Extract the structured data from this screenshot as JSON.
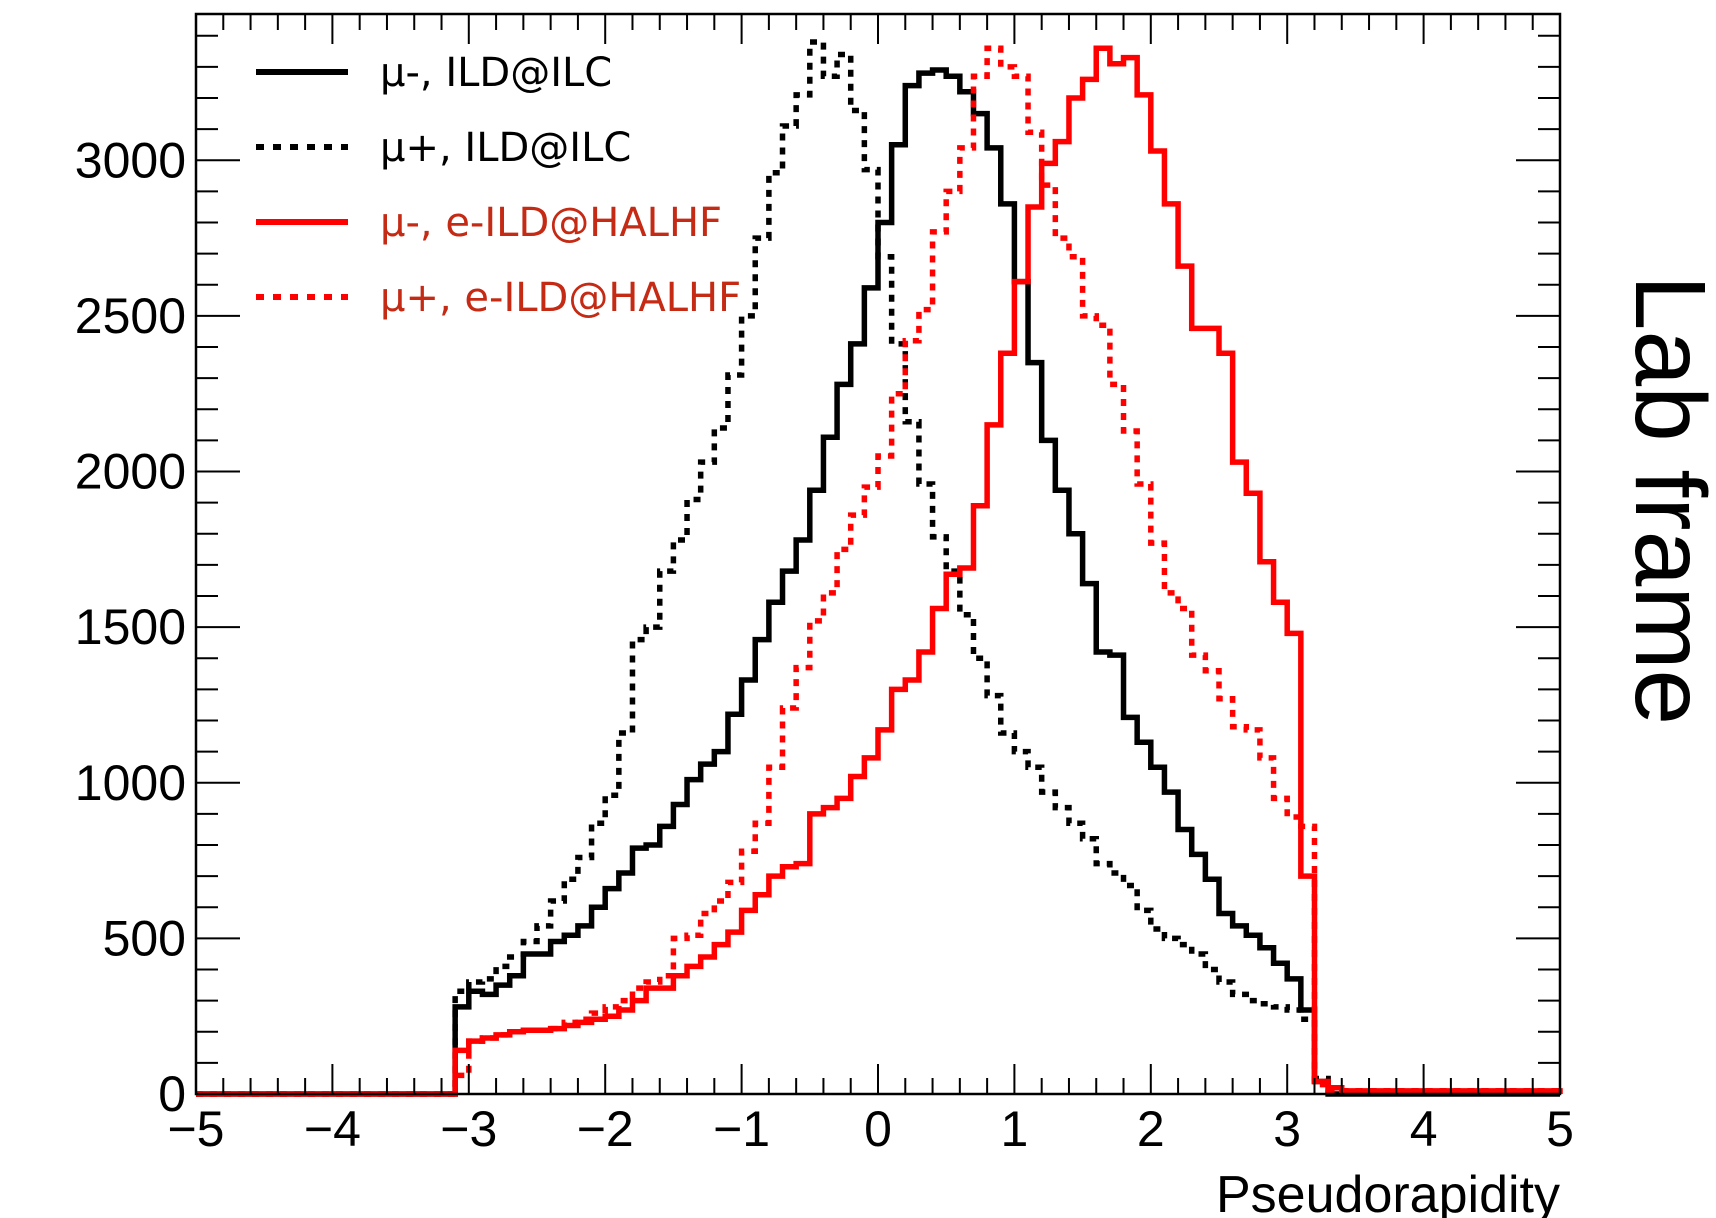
{
  "chart_data": {
    "type": "line",
    "histogram_style": "step",
    "xlabel": "Pseudorapidity",
    "ylabel": "",
    "side_title": "Lab frame",
    "xlim": [
      -5,
      5
    ],
    "ylim": [
      0,
      3470
    ],
    "bin_width": 0.1,
    "x_ticks": [
      "−5",
      "−4",
      "−3",
      "−2",
      "−1",
      "0",
      "1",
      "2",
      "3",
      "4",
      "5"
    ],
    "y_ticks": [
      "0",
      "500",
      "1000",
      "1500",
      "2000",
      "2500",
      "3000"
    ],
    "grid": false,
    "legend_position": "top-left",
    "series": [
      {
        "name": "μ-, ILD@ILC",
        "color": "#000000",
        "dash": "solid",
        "text_color": "#000000",
        "points": [
          [
            -5.0,
            0
          ],
          [
            -3.2,
            0
          ],
          [
            -3.1,
            280
          ],
          [
            -3.0,
            330
          ],
          [
            -2.9,
            320
          ],
          [
            -2.8,
            350
          ],
          [
            -2.7,
            380
          ],
          [
            -2.6,
            450
          ],
          [
            -2.5,
            450
          ],
          [
            -2.4,
            490
          ],
          [
            -2.3,
            510
          ],
          [
            -2.2,
            540
          ],
          [
            -2.1,
            600
          ],
          [
            -2.0,
            660
          ],
          [
            -1.9,
            710
          ],
          [
            -1.8,
            790
          ],
          [
            -1.7,
            800
          ],
          [
            -1.6,
            860
          ],
          [
            -1.5,
            930
          ],
          [
            -1.4,
            1010
          ],
          [
            -1.3,
            1060
          ],
          [
            -1.2,
            1100
          ],
          [
            -1.1,
            1220
          ],
          [
            -1.0,
            1330
          ],
          [
            -0.9,
            1460
          ],
          [
            -0.8,
            1580
          ],
          [
            -0.7,
            1680
          ],
          [
            -0.6,
            1780
          ],
          [
            -0.5,
            1940
          ],
          [
            -0.4,
            2110
          ],
          [
            -0.3,
            2280
          ],
          [
            -0.2,
            2410
          ],
          [
            -0.1,
            2590
          ],
          [
            0.0,
            2800
          ],
          [
            0.1,
            3050
          ],
          [
            0.2,
            3240
          ],
          [
            0.3,
            3280
          ],
          [
            0.4,
            3290
          ],
          [
            0.5,
            3270
          ],
          [
            0.6,
            3220
          ],
          [
            0.7,
            3150
          ],
          [
            0.8,
            3040
          ],
          [
            0.9,
            2860
          ],
          [
            1.0,
            2610
          ],
          [
            1.1,
            2350
          ],
          [
            1.2,
            2100
          ],
          [
            1.3,
            1940
          ],
          [
            1.4,
            1800
          ],
          [
            1.5,
            1640
          ],
          [
            1.6,
            1420
          ],
          [
            1.7,
            1410
          ],
          [
            1.8,
            1210
          ],
          [
            1.9,
            1130
          ],
          [
            2.0,
            1050
          ],
          [
            2.1,
            970
          ],
          [
            2.2,
            850
          ],
          [
            2.3,
            770
          ],
          [
            2.4,
            690
          ],
          [
            2.5,
            580
          ],
          [
            2.6,
            540
          ],
          [
            2.7,
            510
          ],
          [
            2.8,
            470
          ],
          [
            2.9,
            420
          ],
          [
            3.0,
            370
          ],
          [
            3.1,
            270
          ],
          [
            3.2,
            40
          ],
          [
            3.3,
            0
          ],
          [
            5.0,
            0
          ]
        ]
      },
      {
        "name": "μ+, ILD@ILC",
        "color": "#000000",
        "dash": "dotted",
        "text_color": "#000000",
        "points": [
          [
            -5.0,
            0
          ],
          [
            -3.2,
            0
          ],
          [
            -3.1,
            330
          ],
          [
            -3.0,
            360
          ],
          [
            -2.9,
            370
          ],
          [
            -2.8,
            410
          ],
          [
            -2.7,
            440
          ],
          [
            -2.6,
            490
          ],
          [
            -2.5,
            540
          ],
          [
            -2.4,
            620
          ],
          [
            -2.3,
            690
          ],
          [
            -2.2,
            760
          ],
          [
            -2.1,
            870
          ],
          [
            -2.0,
            960
          ],
          [
            -1.9,
            1160
          ],
          [
            -1.8,
            1460
          ],
          [
            -1.7,
            1500
          ],
          [
            -1.6,
            1680
          ],
          [
            -1.5,
            1780
          ],
          [
            -1.4,
            1910
          ],
          [
            -1.3,
            2030
          ],
          [
            -1.2,
            2140
          ],
          [
            -1.1,
            2310
          ],
          [
            -1.0,
            2500
          ],
          [
            -0.9,
            2750
          ],
          [
            -0.8,
            2960
          ],
          [
            -0.7,
            3110
          ],
          [
            -0.6,
            3210
          ],
          [
            -0.5,
            3380
          ],
          [
            -0.4,
            3270
          ],
          [
            -0.3,
            3340
          ],
          [
            -0.2,
            3160
          ],
          [
            -0.1,
            2970
          ],
          [
            0.0,
            2690
          ],
          [
            0.1,
            2410
          ],
          [
            0.2,
            2160
          ],
          [
            0.3,
            1960
          ],
          [
            0.4,
            1790
          ],
          [
            0.5,
            1680
          ],
          [
            0.6,
            1540
          ],
          [
            0.7,
            1400
          ],
          [
            0.8,
            1280
          ],
          [
            0.9,
            1160
          ],
          [
            1.0,
            1100
          ],
          [
            1.1,
            1050
          ],
          [
            1.2,
            970
          ],
          [
            1.3,
            920
          ],
          [
            1.4,
            870
          ],
          [
            1.5,
            820
          ],
          [
            1.6,
            740
          ],
          [
            1.7,
            710
          ],
          [
            1.8,
            670
          ],
          [
            1.9,
            590
          ],
          [
            2.0,
            530
          ],
          [
            2.1,
            500
          ],
          [
            2.2,
            480
          ],
          [
            2.3,
            450
          ],
          [
            2.4,
            400
          ],
          [
            2.5,
            360
          ],
          [
            2.6,
            320
          ],
          [
            2.7,
            300
          ],
          [
            2.8,
            290
          ],
          [
            2.9,
            280
          ],
          [
            3.0,
            270
          ],
          [
            3.1,
            240
          ],
          [
            3.2,
            50
          ],
          [
            3.3,
            10
          ],
          [
            5.0,
            0
          ]
        ]
      },
      {
        "name": "μ-, e-ILD@HALHF",
        "color": "#ff0000",
        "dash": "solid",
        "text_color": "#c42a14",
        "points": [
          [
            -5.0,
            0
          ],
          [
            -3.2,
            0
          ],
          [
            -3.1,
            140
          ],
          [
            -3.0,
            170
          ],
          [
            -2.9,
            180
          ],
          [
            -2.8,
            190
          ],
          [
            -2.7,
            200
          ],
          [
            -2.6,
            205
          ],
          [
            -2.5,
            205
          ],
          [
            -2.4,
            210
          ],
          [
            -2.3,
            220
          ],
          [
            -2.2,
            230
          ],
          [
            -2.1,
            240
          ],
          [
            -2.0,
            250
          ],
          [
            -1.9,
            270
          ],
          [
            -1.8,
            300
          ],
          [
            -1.7,
            340
          ],
          [
            -1.6,
            340
          ],
          [
            -1.5,
            380
          ],
          [
            -1.4,
            410
          ],
          [
            -1.3,
            440
          ],
          [
            -1.2,
            480
          ],
          [
            -1.1,
            520
          ],
          [
            -1.0,
            590
          ],
          [
            -0.9,
            640
          ],
          [
            -0.8,
            700
          ],
          [
            -0.7,
            730
          ],
          [
            -0.6,
            740
          ],
          [
            -0.5,
            900
          ],
          [
            -0.4,
            920
          ],
          [
            -0.3,
            950
          ],
          [
            -0.2,
            1020
          ],
          [
            -0.1,
            1080
          ],
          [
            0.0,
            1170
          ],
          [
            0.1,
            1300
          ],
          [
            0.2,
            1330
          ],
          [
            0.3,
            1420
          ],
          [
            0.4,
            1560
          ],
          [
            0.5,
            1670
          ],
          [
            0.6,
            1690
          ],
          [
            0.7,
            1890
          ],
          [
            0.8,
            2150
          ],
          [
            0.9,
            2380
          ],
          [
            1.0,
            2610
          ],
          [
            1.1,
            2850
          ],
          [
            1.2,
            2990
          ],
          [
            1.3,
            3060
          ],
          [
            1.4,
            3200
          ],
          [
            1.5,
            3260
          ],
          [
            1.6,
            3360
          ],
          [
            1.7,
            3310
          ],
          [
            1.8,
            3330
          ],
          [
            1.9,
            3210
          ],
          [
            2.0,
            3030
          ],
          [
            2.1,
            2860
          ],
          [
            2.2,
            2660
          ],
          [
            2.3,
            2460
          ],
          [
            2.4,
            2460
          ],
          [
            2.5,
            2380
          ],
          [
            2.6,
            2030
          ],
          [
            2.7,
            1930
          ],
          [
            2.8,
            1710
          ],
          [
            2.9,
            1580
          ],
          [
            3.0,
            1480
          ],
          [
            3.1,
            700
          ],
          [
            3.2,
            40
          ],
          [
            3.3,
            20
          ],
          [
            3.4,
            10
          ],
          [
            5.0,
            0
          ]
        ]
      },
      {
        "name": "μ+, e-ILD@HALHF",
        "color": "#ff0000",
        "dash": "dotted",
        "text_color": "#c42a14",
        "points": [
          [
            -5.0,
            0
          ],
          [
            -3.2,
            0
          ],
          [
            -3.1,
            60
          ],
          [
            -3.0,
            170
          ],
          [
            -2.9,
            180
          ],
          [
            -2.8,
            190
          ],
          [
            -2.7,
            200
          ],
          [
            -2.6,
            205
          ],
          [
            -2.5,
            205
          ],
          [
            -2.4,
            210
          ],
          [
            -2.3,
            230
          ],
          [
            -2.2,
            240
          ],
          [
            -2.1,
            260
          ],
          [
            -2.0,
            280
          ],
          [
            -1.9,
            300
          ],
          [
            -1.8,
            340
          ],
          [
            -1.7,
            360
          ],
          [
            -1.6,
            380
          ],
          [
            -1.5,
            500
          ],
          [
            -1.4,
            510
          ],
          [
            -1.3,
            580
          ],
          [
            -1.2,
            620
          ],
          [
            -1.1,
            680
          ],
          [
            -1.0,
            780
          ],
          [
            -0.9,
            870
          ],
          [
            -0.8,
            1050
          ],
          [
            -0.7,
            1240
          ],
          [
            -0.6,
            1370
          ],
          [
            -0.5,
            1520
          ],
          [
            -0.4,
            1610
          ],
          [
            -0.3,
            1750
          ],
          [
            -0.2,
            1860
          ],
          [
            -0.1,
            1950
          ],
          [
            0.0,
            2050
          ],
          [
            0.1,
            2250
          ],
          [
            0.2,
            2420
          ],
          [
            0.3,
            2520
          ],
          [
            0.4,
            2770
          ],
          [
            0.5,
            2900
          ],
          [
            0.6,
            3040
          ],
          [
            0.7,
            3270
          ],
          [
            0.8,
            3360
          ],
          [
            0.9,
            3300
          ],
          [
            1.0,
            3270
          ],
          [
            1.1,
            3090
          ],
          [
            1.2,
            2920
          ],
          [
            1.3,
            2750
          ],
          [
            1.4,
            2690
          ],
          [
            1.5,
            2500
          ],
          [
            1.6,
            2470
          ],
          [
            1.7,
            2280
          ],
          [
            1.8,
            2130
          ],
          [
            1.9,
            1960
          ],
          [
            2.0,
            1770
          ],
          [
            2.1,
            1610
          ],
          [
            2.2,
            1560
          ],
          [
            2.3,
            1410
          ],
          [
            2.4,
            1360
          ],
          [
            2.5,
            1270
          ],
          [
            2.6,
            1180
          ],
          [
            2.7,
            1170
          ],
          [
            2.8,
            1080
          ],
          [
            2.9,
            950
          ],
          [
            3.0,
            890
          ],
          [
            3.1,
            860
          ],
          [
            3.2,
            30
          ],
          [
            3.3,
            10
          ],
          [
            5.0,
            0
          ]
        ]
      }
    ]
  }
}
